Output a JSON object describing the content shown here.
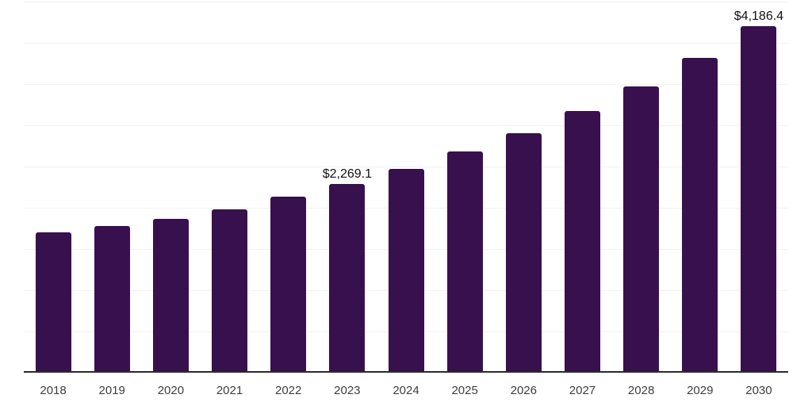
{
  "chart_data": {
    "type": "bar",
    "title": "",
    "xlabel": "",
    "ylabel": "",
    "categories": [
      "2018",
      "2019",
      "2020",
      "2021",
      "2022",
      "2023",
      "2024",
      "2025",
      "2026",
      "2027",
      "2028",
      "2029",
      "2030"
    ],
    "values": [
      1680,
      1755,
      1850,
      1965,
      2115,
      2269.1,
      2450,
      2660,
      2885,
      3150,
      3450,
      3800,
      4186.4
    ],
    "value_labels": {
      "2023": "$2,269.1",
      "2030": "$4,186.4"
    },
    "ylim": [
      0,
      4500
    ],
    "grid": true,
    "grid_step": 500,
    "legend": false,
    "colors": {
      "bar": "#38104D",
      "axis_line": "#2b2b2b",
      "gridline": "#f2f2f2",
      "tick_label": "#3d3d3d",
      "value_label": "#111111"
    }
  }
}
